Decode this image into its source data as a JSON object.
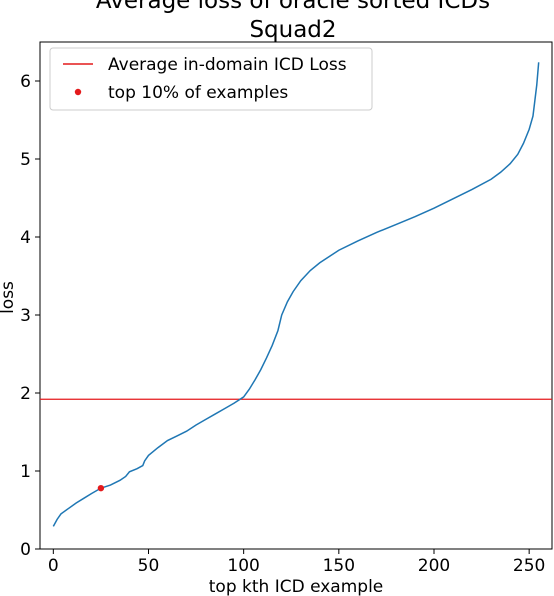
{
  "chart_data": {
    "type": "line",
    "title_lines": [
      "Average loss of oracle sorted ICDs",
      "Squad2"
    ],
    "xlabel": "top kth ICD example",
    "ylabel": "loss",
    "xlim": [
      -7,
      262
    ],
    "ylim": [
      0,
      6.5
    ],
    "xticks": [
      0,
      50,
      100,
      150,
      200,
      250
    ],
    "yticks": [
      0,
      1,
      2,
      3,
      4,
      5,
      6
    ],
    "grid": false,
    "legend": {
      "position": "top-left",
      "entries": [
        {
          "label": "Average in-domain ICD Loss",
          "kind": "line",
          "color": "#e41a1c"
        },
        {
          "label": "top 10% of examples",
          "kind": "marker",
          "color": "#e41a1c"
        }
      ]
    },
    "series": [
      {
        "color": "#1f77b4",
        "points": [
          [
            0,
            0.29
          ],
          [
            2,
            0.38
          ],
          [
            4,
            0.45
          ],
          [
            8,
            0.52
          ],
          [
            12,
            0.59
          ],
          [
            16,
            0.65
          ],
          [
            20,
            0.71
          ],
          [
            25,
            0.78
          ],
          [
            30,
            0.82
          ],
          [
            35,
            0.88
          ],
          [
            38,
            0.93
          ],
          [
            40,
            0.99
          ],
          [
            44,
            1.03
          ],
          [
            47,
            1.07
          ],
          [
            48,
            1.13
          ],
          [
            50,
            1.2
          ],
          [
            55,
            1.3
          ],
          [
            60,
            1.39
          ],
          [
            65,
            1.45
          ],
          [
            70,
            1.51
          ],
          [
            75,
            1.59
          ],
          [
            80,
            1.66
          ],
          [
            85,
            1.73
          ],
          [
            90,
            1.8
          ],
          [
            95,
            1.87
          ],
          [
            100,
            1.95
          ],
          [
            103,
            2.05
          ],
          [
            106,
            2.17
          ],
          [
            109,
            2.3
          ],
          [
            112,
            2.45
          ],
          [
            115,
            2.61
          ],
          [
            118,
            2.8
          ],
          [
            120,
            3.0
          ],
          [
            123,
            3.17
          ],
          [
            126,
            3.3
          ],
          [
            130,
            3.44
          ],
          [
            135,
            3.57
          ],
          [
            140,
            3.67
          ],
          [
            145,
            3.75
          ],
          [
            150,
            3.83
          ],
          [
            160,
            3.95
          ],
          [
            170,
            4.06
          ],
          [
            180,
            4.16
          ],
          [
            190,
            4.26
          ],
          [
            200,
            4.37
          ],
          [
            210,
            4.49
          ],
          [
            220,
            4.61
          ],
          [
            230,
            4.74
          ],
          [
            235,
            4.83
          ],
          [
            240,
            4.94
          ],
          [
            244,
            5.06
          ],
          [
            247,
            5.2
          ],
          [
            250,
            5.38
          ],
          [
            252,
            5.55
          ],
          [
            253,
            5.75
          ],
          [
            254,
            5.95
          ],
          [
            255,
            6.24
          ]
        ]
      }
    ],
    "reference_line": {
      "y": 1.92,
      "color": "#e41a1c"
    },
    "highlight_points": [
      {
        "x": 25,
        "y": 0.78,
        "color": "#e41a1c"
      }
    ]
  }
}
